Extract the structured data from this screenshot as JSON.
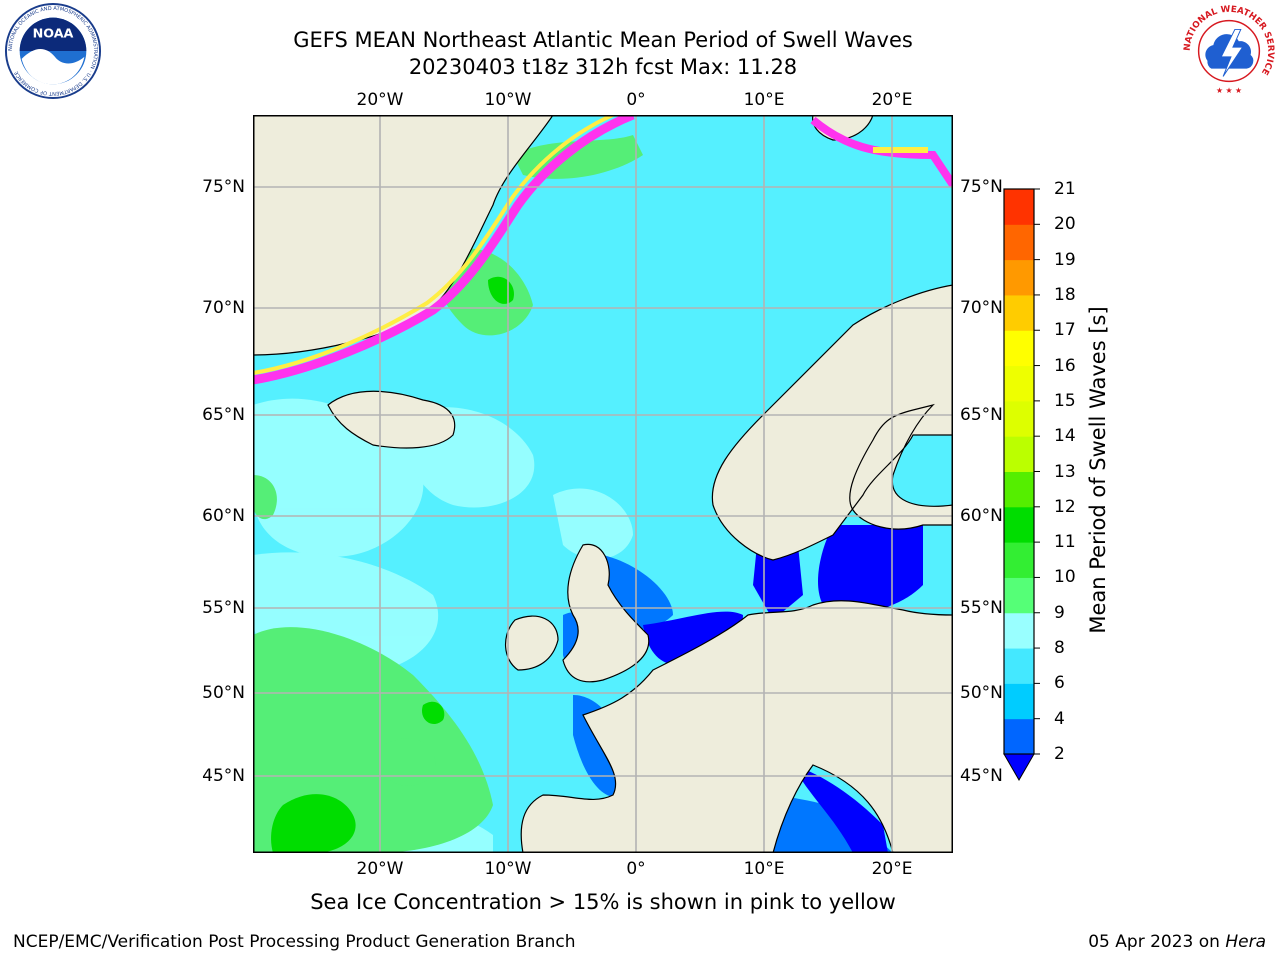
{
  "title": {
    "line1": "GEFS MEAN Northeast Atlantic Mean Period of Swell Waves",
    "line2": "20230403 t18z 312h fcst   Max: 11.28"
  },
  "map": {
    "lon_labels": [
      "20°W",
      "10°W",
      "0°",
      "10°E",
      "20°E"
    ],
    "lat_labels": [
      "75°N",
      "70°N",
      "65°N",
      "60°N",
      "55°N",
      "50°N",
      "45°N"
    ],
    "colors": {
      "land": "#eeeddc",
      "ice_pink": "#ff33ee",
      "ice_yellow": "#ffee44",
      "grid": "#b3b3b3"
    }
  },
  "colorbar": {
    "title": "Mean Period of Swell Waves [s]",
    "ticks": [
      "2",
      "4",
      "6",
      "8",
      "9",
      "10",
      "11",
      "12",
      "13",
      "14",
      "15",
      "16",
      "17",
      "18",
      "19",
      "20",
      "21"
    ],
    "colors": [
      "#0066ff",
      "#00ccff",
      "#44e8ff",
      "#99ffff",
      "#55ff77",
      "#33ee33",
      "#00dd00",
      "#55ee00",
      "#bbff00",
      "#ddff00",
      "#eeff00",
      "#ffff00",
      "#ffcc00",
      "#ff9900",
      "#ff6600",
      "#ff3300",
      "#ff0000"
    ],
    "extend_color": "#0000ff"
  },
  "footnote": "Sea Ice Concentration > 15% is shown in pink to yellow",
  "credit": "NCEP/EMC/Verification Post Processing Product Generation Branch",
  "date": {
    "prefix": "05 Apr 2023 on ",
    "host": "Hera"
  },
  "logos": {
    "noaa_text": "NOAA",
    "noaa_ring": "NATIONAL OCEANIC AND ATMOSPHERIC ADMINISTRATION · U.S. DEPARTMENT OF COMMERCE",
    "nws_ring": "NATIONAL WEATHER SERVICE"
  }
}
